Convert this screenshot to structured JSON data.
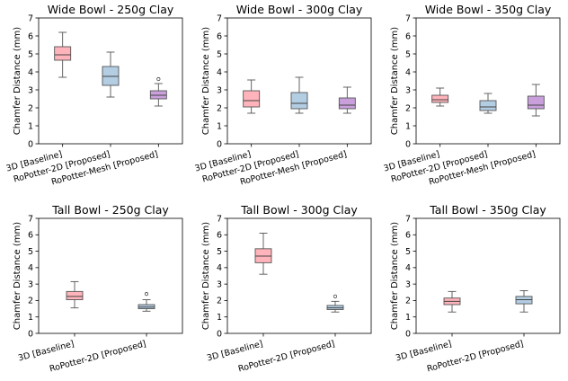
{
  "colors": {
    "baseline": "#ffb3ba",
    "proposed_2d": "#b3cde3",
    "proposed_mesh": "#c9a0dc"
  },
  "chart_data": [
    {
      "type": "box",
      "title": "Wide Bowl - 250g Clay",
      "ylabel": "Chamfer Distance (mm)",
      "ylim": [
        0,
        7
      ],
      "yticks": [
        "0",
        "1",
        "2",
        "3",
        "4",
        "5",
        "6",
        "7"
      ],
      "categories": [
        "3D [Baseline]",
        "RoPotter-2D [Proposed]",
        "RoPotter-Mesh [Proposed]"
      ],
      "boxes": [
        {
          "min": 3.7,
          "q1": 4.65,
          "median": 4.95,
          "q3": 5.4,
          "max": 6.2,
          "fliers": [],
          "color": "#ffb3ba"
        },
        {
          "min": 2.6,
          "q1": 3.25,
          "median": 3.75,
          "q3": 4.3,
          "max": 5.1,
          "fliers": [],
          "color": "#b3cde3"
        },
        {
          "min": 2.1,
          "q1": 2.5,
          "median": 2.7,
          "q3": 2.95,
          "max": 3.35,
          "fliers": [
            3.6
          ],
          "color": "#c9a0dc"
        }
      ]
    },
    {
      "type": "box",
      "title": "Wide Bowl - 300g Clay",
      "ylabel": "Chamfer Distance (mm)",
      "ylim": [
        0,
        7
      ],
      "yticks": [
        "0",
        "1",
        "2",
        "3",
        "4",
        "5",
        "6",
        "7"
      ],
      "categories": [
        "3D [Baseline]",
        "RoPotter-2D [Proposed]",
        "RoPotter-Mesh [Proposed]"
      ],
      "boxes": [
        {
          "min": 1.7,
          "q1": 2.05,
          "median": 2.4,
          "q3": 2.95,
          "max": 3.55,
          "fliers": [],
          "color": "#ffb3ba"
        },
        {
          "min": 1.7,
          "q1": 1.95,
          "median": 2.25,
          "q3": 2.85,
          "max": 3.7,
          "fliers": [],
          "color": "#b3cde3"
        },
        {
          "min": 1.7,
          "q1": 1.95,
          "median": 2.15,
          "q3": 2.55,
          "max": 3.15,
          "fliers": [],
          "color": "#c9a0dc"
        }
      ]
    },
    {
      "type": "box",
      "title": "Wide Bowl - 350g Clay",
      "ylabel": "Chamfer Distance (mm)",
      "ylim": [
        0,
        7
      ],
      "yticks": [
        "0",
        "1",
        "2",
        "3",
        "4",
        "5",
        "6",
        "7"
      ],
      "categories": [
        "3D [Baseline]",
        "RoPotter-2D [Proposed]",
        "RoPotter-Mesh [Proposed]"
      ],
      "boxes": [
        {
          "min": 2.1,
          "q1": 2.3,
          "median": 2.45,
          "q3": 2.7,
          "max": 3.1,
          "fliers": [],
          "color": "#ffb3ba"
        },
        {
          "min": 1.7,
          "q1": 1.85,
          "median": 2.05,
          "q3": 2.4,
          "max": 2.8,
          "fliers": [],
          "color": "#b3cde3"
        },
        {
          "min": 1.55,
          "q1": 1.95,
          "median": 2.15,
          "q3": 2.65,
          "max": 3.3,
          "fliers": [],
          "color": "#c9a0dc"
        }
      ]
    },
    {
      "type": "box",
      "title": "Tall Bowl - 250g Clay",
      "ylabel": "Chamfer Distance (mm)",
      "ylim": [
        0,
        7
      ],
      "yticks": [
        "0",
        "1",
        "2",
        "3",
        "4",
        "5",
        "6",
        "7"
      ],
      "categories": [
        "3D [Baseline]",
        "RoPotter-2D [Proposed]"
      ],
      "boxes": [
        {
          "min": 1.55,
          "q1": 2.05,
          "median": 2.25,
          "q3": 2.55,
          "max": 3.15,
          "fliers": [],
          "color": "#ffb3ba"
        },
        {
          "min": 1.35,
          "q1": 1.5,
          "median": 1.6,
          "q3": 1.75,
          "max": 2.05,
          "fliers": [
            2.4
          ],
          "color": "#b3cde3"
        }
      ]
    },
    {
      "type": "box",
      "title": "Tall Bowl - 300g Clay",
      "ylabel": "Chamfer Distance (mm)",
      "ylim": [
        0,
        7
      ],
      "yticks": [
        "0",
        "1",
        "2",
        "3",
        "4",
        "5",
        "6",
        "7"
      ],
      "categories": [
        "3D [Baseline]",
        "RoPotter-2D [Proposed]"
      ],
      "boxes": [
        {
          "min": 3.6,
          "q1": 4.3,
          "median": 4.7,
          "q3": 5.15,
          "max": 6.1,
          "fliers": [],
          "color": "#ffb3ba"
        },
        {
          "min": 1.3,
          "q1": 1.45,
          "median": 1.55,
          "q3": 1.7,
          "max": 1.95,
          "fliers": [
            2.25
          ],
          "color": "#b3cde3"
        }
      ]
    },
    {
      "type": "box",
      "title": "Tall Bowl - 350g Clay",
      "ylabel": "Chamfer Distance (mm)",
      "ylim": [
        0,
        7
      ],
      "yticks": [
        "0",
        "1",
        "2",
        "3",
        "4",
        "5",
        "6",
        "7"
      ],
      "categories": [
        "3D [Baseline]",
        "RoPotter-2D [Proposed]"
      ],
      "boxes": [
        {
          "min": 1.3,
          "q1": 1.75,
          "median": 1.95,
          "q3": 2.15,
          "max": 2.55,
          "fliers": [],
          "color": "#ffb3ba"
        },
        {
          "min": 1.3,
          "q1": 1.8,
          "median": 2.05,
          "q3": 2.25,
          "max": 2.6,
          "fliers": [],
          "color": "#b3cde3"
        }
      ]
    }
  ]
}
